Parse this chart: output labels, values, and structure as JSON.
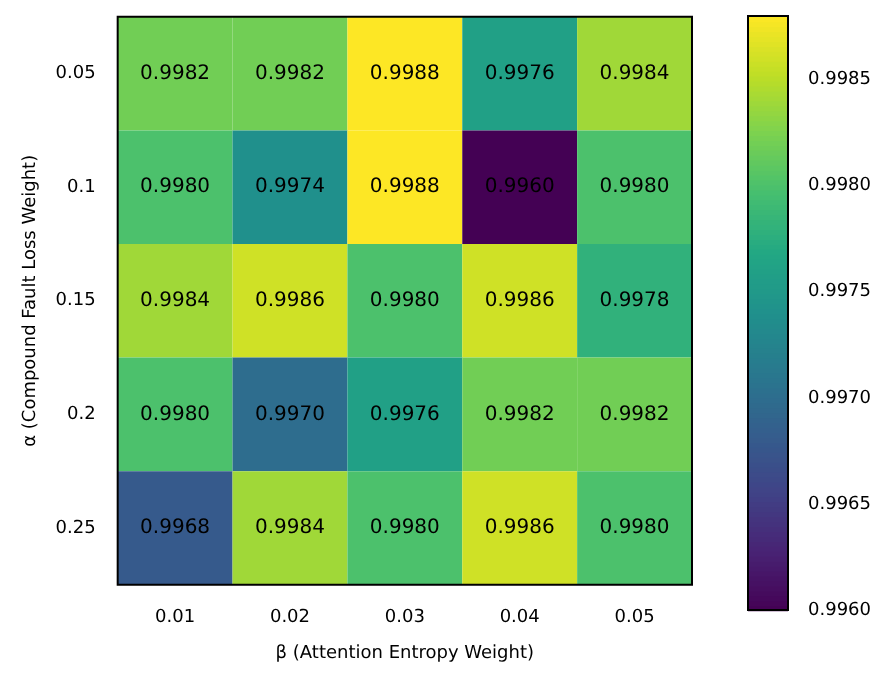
{
  "chart_data": {
    "type": "heatmap",
    "xlabel": "β (Attention Entropy Weight)",
    "ylabel": "α (Compound Fault Loss Weight)",
    "categories": [
      "0.01",
      "0.02",
      "0.03",
      "0.04",
      "0.05"
    ],
    "y_categories": [
      "0.05",
      "0.1",
      "0.15",
      "0.2",
      "0.25"
    ],
    "cells": [
      [
        0.9982,
        0.9982,
        0.9988,
        0.9976,
        0.9984
      ],
      [
        0.998,
        0.9974,
        0.9988,
        0.996,
        0.998
      ],
      [
        0.9984,
        0.9986,
        0.998,
        0.9986,
        0.9978
      ],
      [
        0.998,
        0.997,
        0.9976,
        0.9982,
        0.9982
      ],
      [
        0.9968,
        0.9984,
        0.998,
        0.9986,
        0.998
      ]
    ],
    "cell_labels": [
      [
        "0.9982",
        "0.9982",
        "0.9988",
        "0.9976",
        "0.9984"
      ],
      [
        "0.9980",
        "0.9974",
        "0.9988",
        "0.9960",
        "0.9980"
      ],
      [
        "0.9984",
        "0.9986",
        "0.9980",
        "0.9986",
        "0.9978"
      ],
      [
        "0.9980",
        "0.9970",
        "0.9976",
        "0.9982",
        "0.9982"
      ],
      [
        "0.9968",
        "0.9984",
        "0.9980",
        "0.9986",
        "0.9980"
      ]
    ],
    "clim": [
      0.996,
      0.9988
    ],
    "cticks": [
      {
        "value": 0.996,
        "label": "0.9960"
      },
      {
        "value": 0.9965,
        "label": "0.9965"
      },
      {
        "value": 0.997,
        "label": "0.9970"
      },
      {
        "value": 0.9975,
        "label": "0.9975"
      },
      {
        "value": 0.998,
        "label": "0.9980"
      },
      {
        "value": 0.9985,
        "label": "0.9985"
      }
    ]
  }
}
